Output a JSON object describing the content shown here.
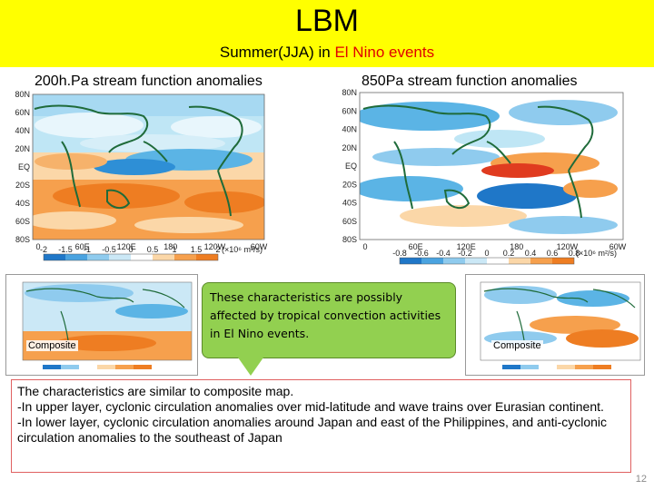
{
  "header": {
    "title": "LBM",
    "subtitle_prefix": "Summer(JJA) in ",
    "subtitle_accent": "El Nino events",
    "background": "#ffff00",
    "accent_color": "#e00000"
  },
  "left_map": {
    "title": "200h.Pa stream function anomalies",
    "lat_labels": [
      "80N",
      "60N",
      "40N",
      "20N",
      "EQ",
      "20S",
      "40S",
      "60S",
      "80S"
    ],
    "lon_labels": [
      "0",
      "60E",
      "120E",
      "180",
      "120W",
      "60W"
    ],
    "colorbar_ticks": [
      "-2",
      "-1.5",
      "-1",
      "-0.5",
      "0",
      "0.5",
      "1",
      "1.5",
      "2"
    ],
    "colorbar_unit": "(×10⁶ m²/s)"
  },
  "right_map": {
    "title": "850Pa stream function anomalies",
    "lat_labels": [
      "80N",
      "60N",
      "40N",
      "20N",
      "EQ",
      "20S",
      "40S",
      "60S",
      "80S"
    ],
    "lon_labels": [
      "0",
      "60E",
      "120E",
      "180",
      "120W",
      "60W"
    ],
    "colorbar_ticks": [
      "-0.8",
      "-0.6",
      "-0.4",
      "-0.2",
      "0",
      "0.2",
      "0.4",
      "0.6",
      "0.8"
    ],
    "colorbar_unit": "(×10⁶ m²/s)"
  },
  "thumb_left": {
    "label": "Composite"
  },
  "thumb_right": {
    "label": "Composite"
  },
  "callout": {
    "text": "These characteristics are possibly affected by tropical convection activities in El Nino events.",
    "color": "#92d050"
  },
  "summary": {
    "line1": "The characteristics are similar to composite map.",
    "line2": "-In upper layer, cyclonic circulation anomalies over mid-latitude and wave trains over Eurasian continent.",
    "line3": "-In lower layer, cyclonic circulation anomalies around Japan and east of the Philippines, and anti-cyclonic circulation anomalies to the southeast of Japan"
  },
  "page_number": "12"
}
